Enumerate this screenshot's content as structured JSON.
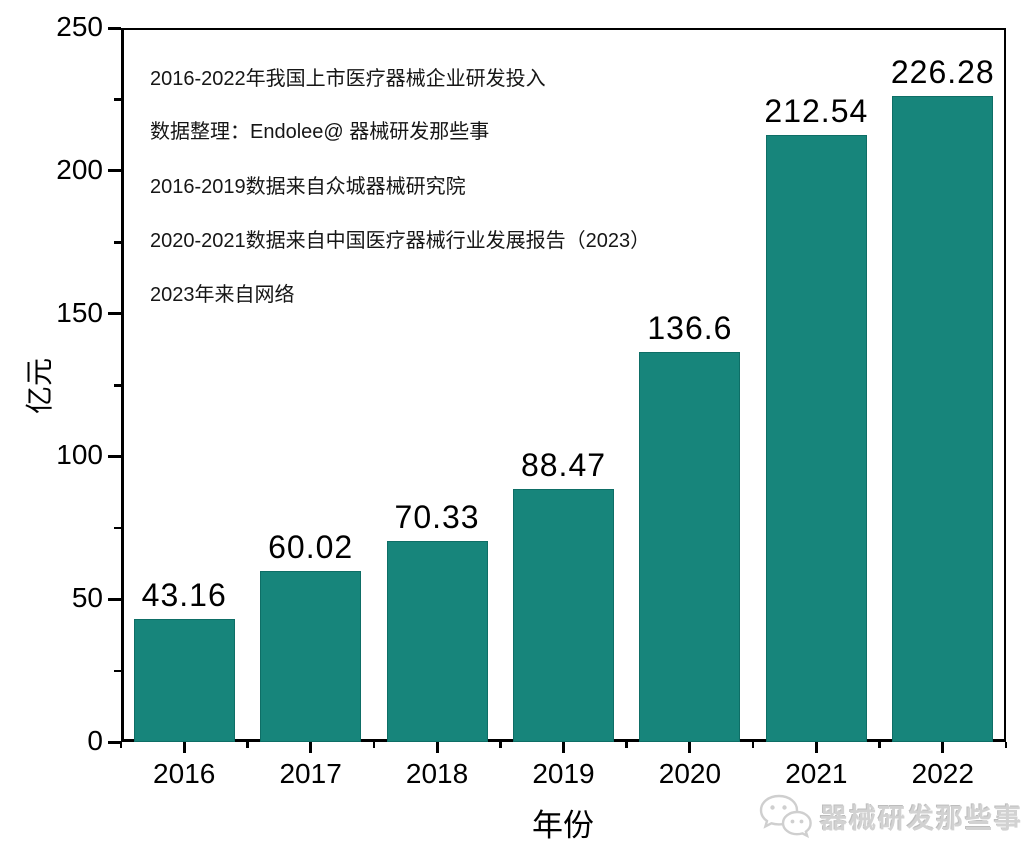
{
  "colors": {
    "bar_fill": "#17857B",
    "bar_border": "#0E6E66",
    "axis": "#000000",
    "annotation_text": "#161616",
    "watermark_gray": "#D2D2D2"
  },
  "annotations": [
    "2016-2022年我国上市医疗器械企业研发投入",
    "数据整理：Endolee@ 器械研发那些事",
    "2016-2019数据来自众城器械研究院",
    "2020-2021数据来自中国医疗器械行业发展报告（2023）",
    "2023年来自网络"
  ],
  "watermark": {
    "icon": "wechat-icon",
    "label": "器械研发那些事"
  },
  "chart_data": {
    "type": "bar",
    "title": "2016-2022年我国上市医疗器械企业研发投入",
    "categories": [
      "2016",
      "2017",
      "2018",
      "2019",
      "2020",
      "2021",
      "2022"
    ],
    "values": [
      43.16,
      60.02,
      70.33,
      88.47,
      136.6,
      212.54,
      226.28
    ],
    "value_labels": [
      "43.16",
      "60.02",
      "70.33",
      "88.47",
      "136.6",
      "212.54",
      "226.28"
    ],
    "xlabel": "年份",
    "ylabel": "亿元",
    "ylim": [
      0,
      250
    ],
    "y_major_ticks": [
      0,
      50,
      100,
      150,
      200,
      250
    ],
    "y_minor_ticks": [
      25,
      75,
      125,
      175,
      225
    ],
    "grid": false,
    "legend": "none",
    "bar_color": "#17857B",
    "data_source_notes": [
      "数据整理：Endolee@ 器械研发那些事",
      "2016-2019数据来自众城器械研究院",
      "2020-2021数据来自中国医疗器械行业发展报告（2023）",
      "2023年来自网络"
    ]
  }
}
